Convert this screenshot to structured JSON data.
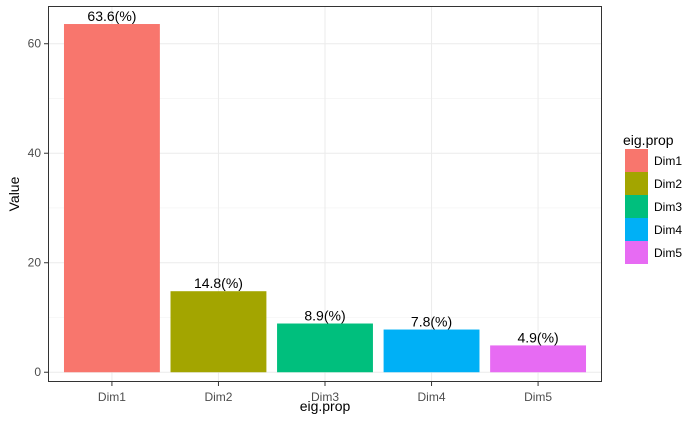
{
  "chart_data": {
    "type": "bar",
    "categories": [
      "Dim1",
      "Dim2",
      "Dim3",
      "Dim4",
      "Dim5"
    ],
    "values": [
      63.6,
      14.8,
      8.9,
      7.8,
      4.9
    ],
    "data_labels": [
      "63.6(%)",
      "14.8(%)",
      "8.9(%)",
      "7.8(%)",
      "4.9(%)"
    ],
    "colors": [
      "#F8766D",
      "#A3A500",
      "#00BF7D",
      "#00B0F6",
      "#E76BF3"
    ],
    "xlabel": "eig.prop",
    "ylabel": "Value",
    "ylim": [
      0,
      66
    ],
    "y_ticks": [
      0,
      20,
      40,
      60
    ],
    "grid": true,
    "legend": {
      "title": "eig.prop",
      "placement": "right",
      "entries": [
        "Dim1",
        "Dim2",
        "Dim3",
        "Dim4",
        "Dim5"
      ]
    }
  }
}
